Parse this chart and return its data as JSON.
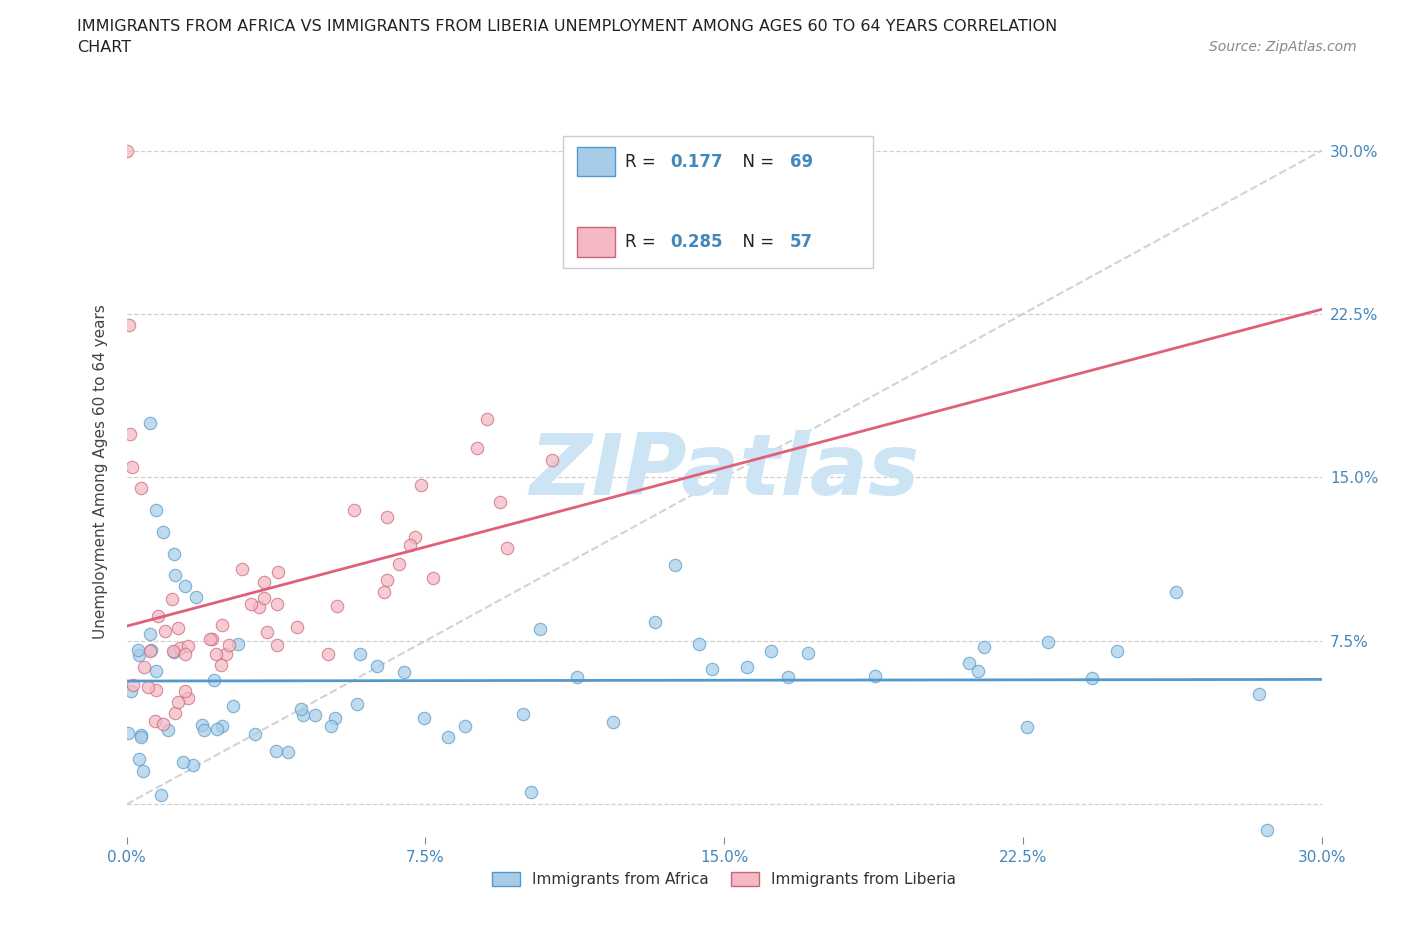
{
  "title_line1": "IMMIGRANTS FROM AFRICA VS IMMIGRANTS FROM LIBERIA UNEMPLOYMENT AMONG AGES 60 TO 64 YEARS CORRELATION",
  "title_line2": "CHART",
  "source": "Source: ZipAtlas.com",
  "ylabel": "Unemployment Among Ages 60 to 64 years",
  "xlim": [
    0.0,
    0.3
  ],
  "ylim": [
    -0.015,
    0.32
  ],
  "xticks": [
    0.0,
    0.075,
    0.15,
    0.225,
    0.3
  ],
  "yticks": [
    0.0,
    0.075,
    0.15,
    0.225,
    0.3
  ],
  "xtick_labels": [
    "0.0%",
    "7.5%",
    "15.0%",
    "22.5%",
    "30.0%"
  ],
  "ytick_right_labels": [
    "",
    "7.5%",
    "15.0%",
    "22.5%",
    "30.0%"
  ],
  "R_africa": 0.177,
  "N_africa": 69,
  "R_liberia": 0.285,
  "N_liberia": 57,
  "color_africa_fill": "#a8cce8",
  "color_africa_edge": "#5599cc",
  "color_africa_line": "#5599cc",
  "color_liberia_fill": "#f5b8c4",
  "color_liberia_edge": "#cc6677",
  "color_liberia_line": "#e0607a",
  "color_diag": "#cccccc",
  "color_grid": "#cccccc",
  "watermark": "ZIPatlas",
  "watermark_color": "#cce4f4",
  "label_africa": "Immigrants from Africa",
  "label_liberia": "Immigrants from Liberia",
  "tick_color": "#4488bb",
  "background": "#ffffff"
}
